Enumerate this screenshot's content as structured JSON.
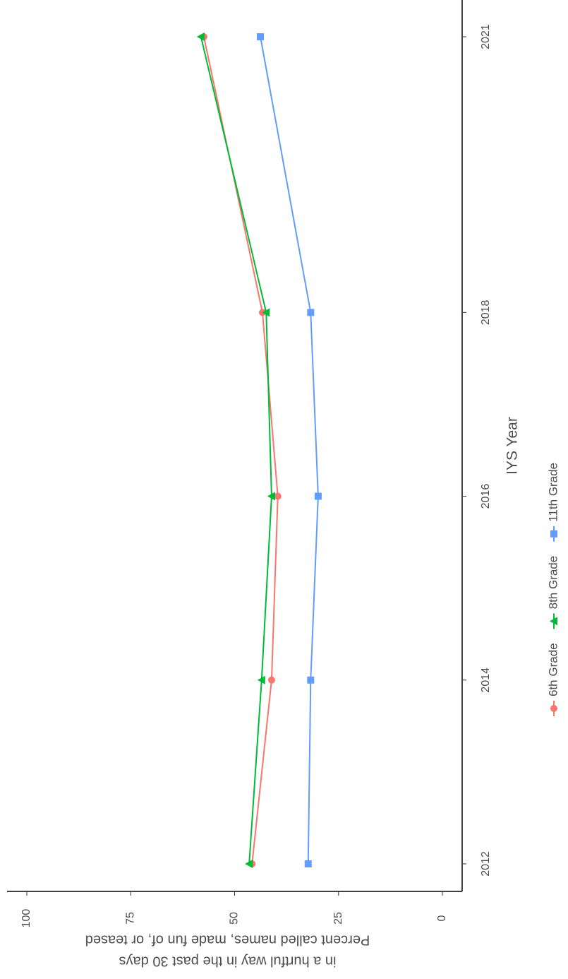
{
  "chart_data": {
    "type": "line",
    "x_label": "IYS Year",
    "y_label": [
      "Percent called names, made fun of, or teased",
      "in a hurtful way in the past 30 days"
    ],
    "x": [
      2012,
      2014,
      2016,
      2018,
      2021
    ],
    "xlim": [
      2011.7,
      2021.4
    ],
    "xticks": [
      2012,
      2014,
      2016,
      2018,
      2021
    ],
    "ylim": [
      -4.75,
      104.75
    ],
    "yticks": [
      0,
      25,
      50,
      75,
      100
    ],
    "rotation": -90,
    "legend": "right",
    "series": [
      {
        "name": "6th Grade",
        "color": "#F8766D",
        "marker": "circle",
        "values": [
          45.8,
          41.1,
          39.6,
          43.3,
          57.4
        ]
      },
      {
        "name": "8th Grade",
        "color": "#00BA38",
        "marker": "triangle",
        "values": [
          46.5,
          43.5,
          41.1,
          42.4,
          58.1
        ]
      },
      {
        "name": "11th Grade",
        "color": "#619CFF",
        "marker": "square",
        "values": [
          32.3,
          31.7,
          29.9,
          31.7,
          43.8
        ]
      }
    ]
  }
}
